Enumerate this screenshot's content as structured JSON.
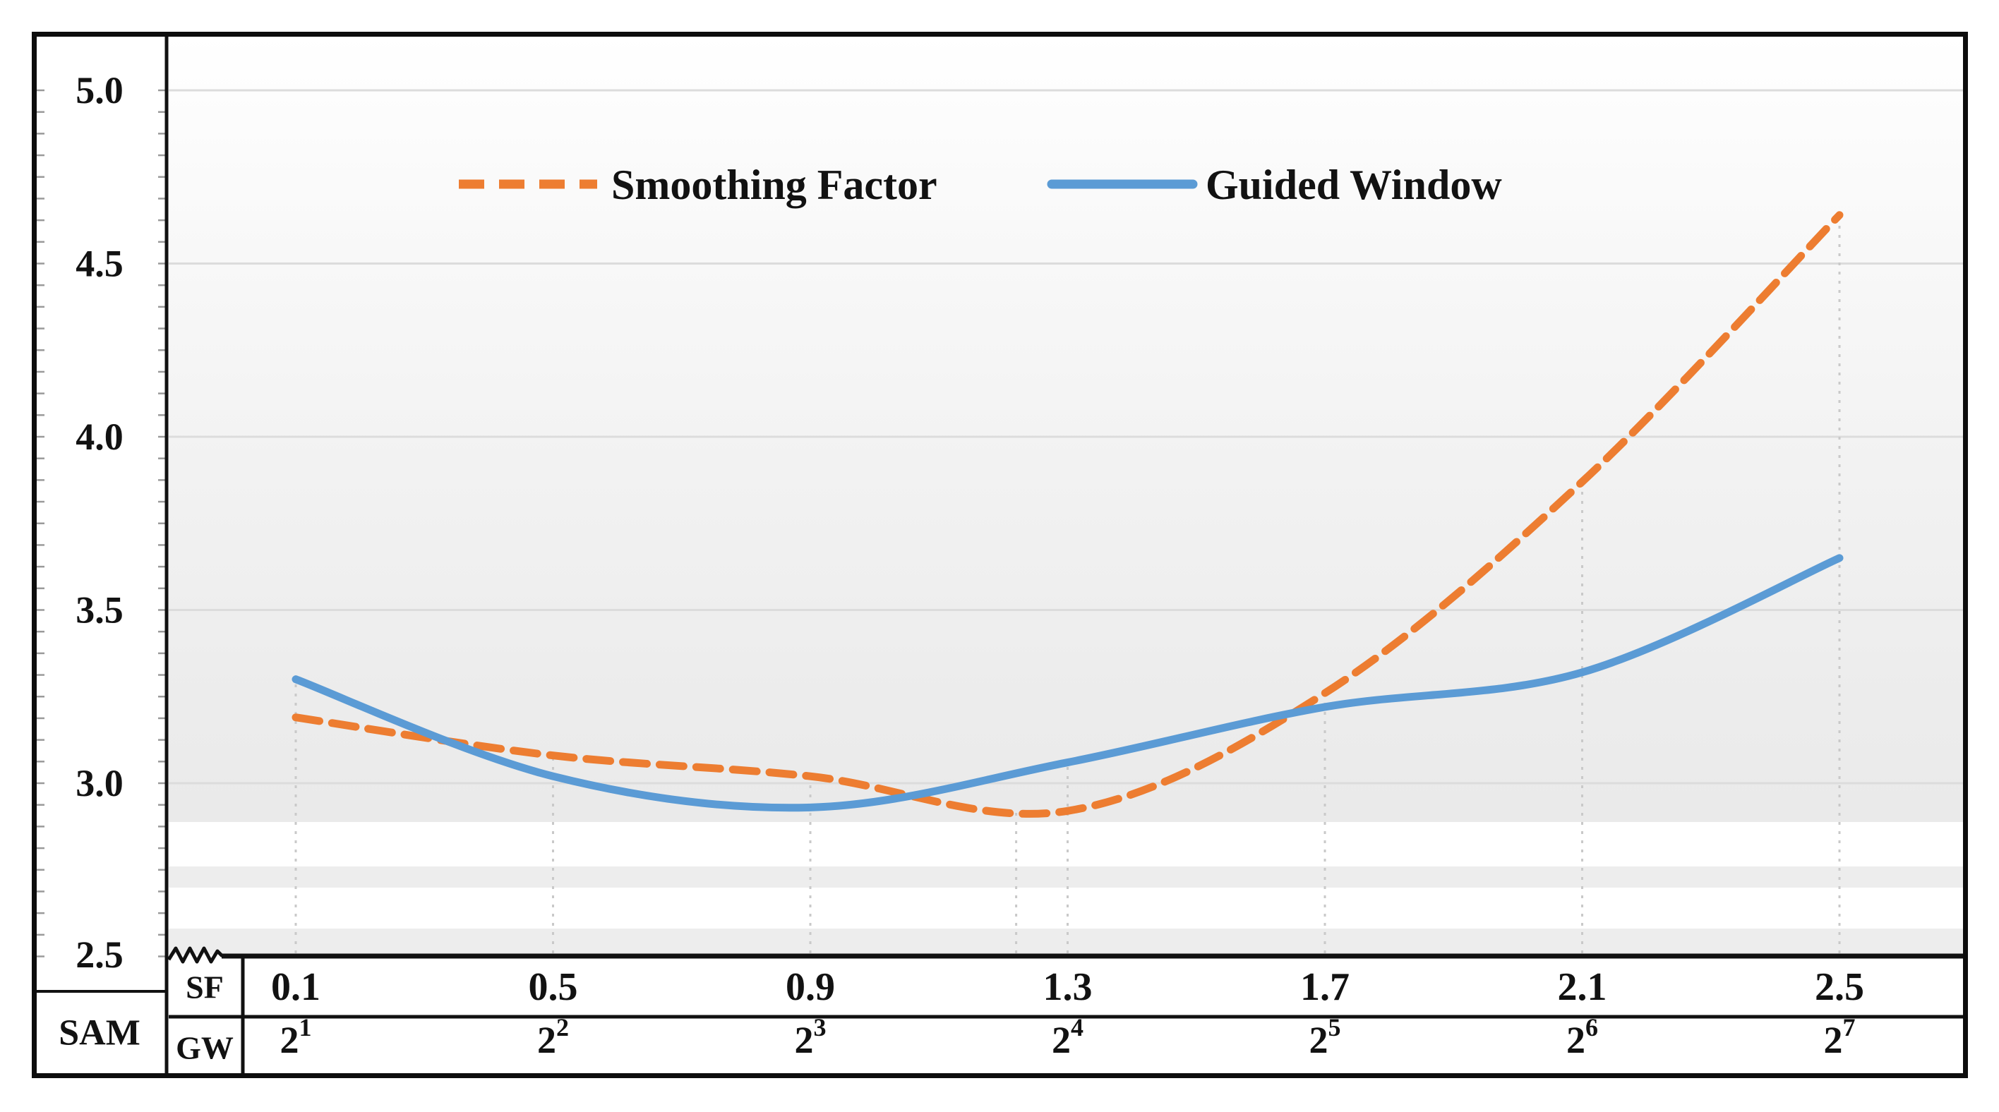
{
  "figure": {
    "kind": "line-chart-with-two-row-x-axis-table",
    "y_axis_title": "SAM",
    "axis_break_symbol": "zigzag",
    "background": "white-to-gray vertical gradient with light bands",
    "accent_colors": {
      "orange": "#ED7D31",
      "blue": "#5B9BD5",
      "gridline": "#dcdcdc",
      "dropline": "#c9c9c9",
      "line_black": "#111111"
    }
  },
  "chart_data": {
    "type": "line",
    "title": "",
    "xlabel": "",
    "ylabel": "SAM",
    "ylim": [
      2.5,
      5.05
    ],
    "yticks": [
      "5.0",
      "4.5",
      "4.0",
      "3.5",
      "3.0",
      "2.5"
    ],
    "grid": "horizontal-major-on, vertical-droplines-dotted",
    "legend_position": "top-center-inside",
    "axis_break": true,
    "x_rows": [
      {
        "header": "SF",
        "labels": [
          "0.1",
          "0.5",
          "0.9",
          "1.3",
          "1.7",
          "2.1",
          "2.5"
        ]
      },
      {
        "header": "GW",
        "labels_exp": [
          {
            "base": "2",
            "sup": "1"
          },
          {
            "base": "2",
            "sup": "2"
          },
          {
            "base": "2",
            "sup": "3"
          },
          {
            "base": "2",
            "sup": "4"
          },
          {
            "base": "2",
            "sup": "5"
          },
          {
            "base": "2",
            "sup": "6"
          },
          {
            "base": "2",
            "sup": "7"
          }
        ]
      }
    ],
    "x_sf_values": [
      0.1,
      0.5,
      0.9,
      1.3,
      1.7,
      2.1,
      2.5
    ],
    "series": [
      {
        "name": "Smoothing Factor",
        "color": "#ED7D31",
        "line_style": "dashed",
        "values": [
          3.19,
          3.08,
          3.02,
          2.92,
          3.26,
          3.87,
          4.64
        ]
      },
      {
        "name": "Guided Window",
        "color": "#5B9BD5",
        "line_style": "solid",
        "values": [
          3.3,
          3.02,
          2.93,
          3.06,
          3.22,
          3.32,
          3.65
        ]
      }
    ],
    "extra_dropline": {
      "sf": 1.22,
      "top_value": 2.93
    }
  }
}
